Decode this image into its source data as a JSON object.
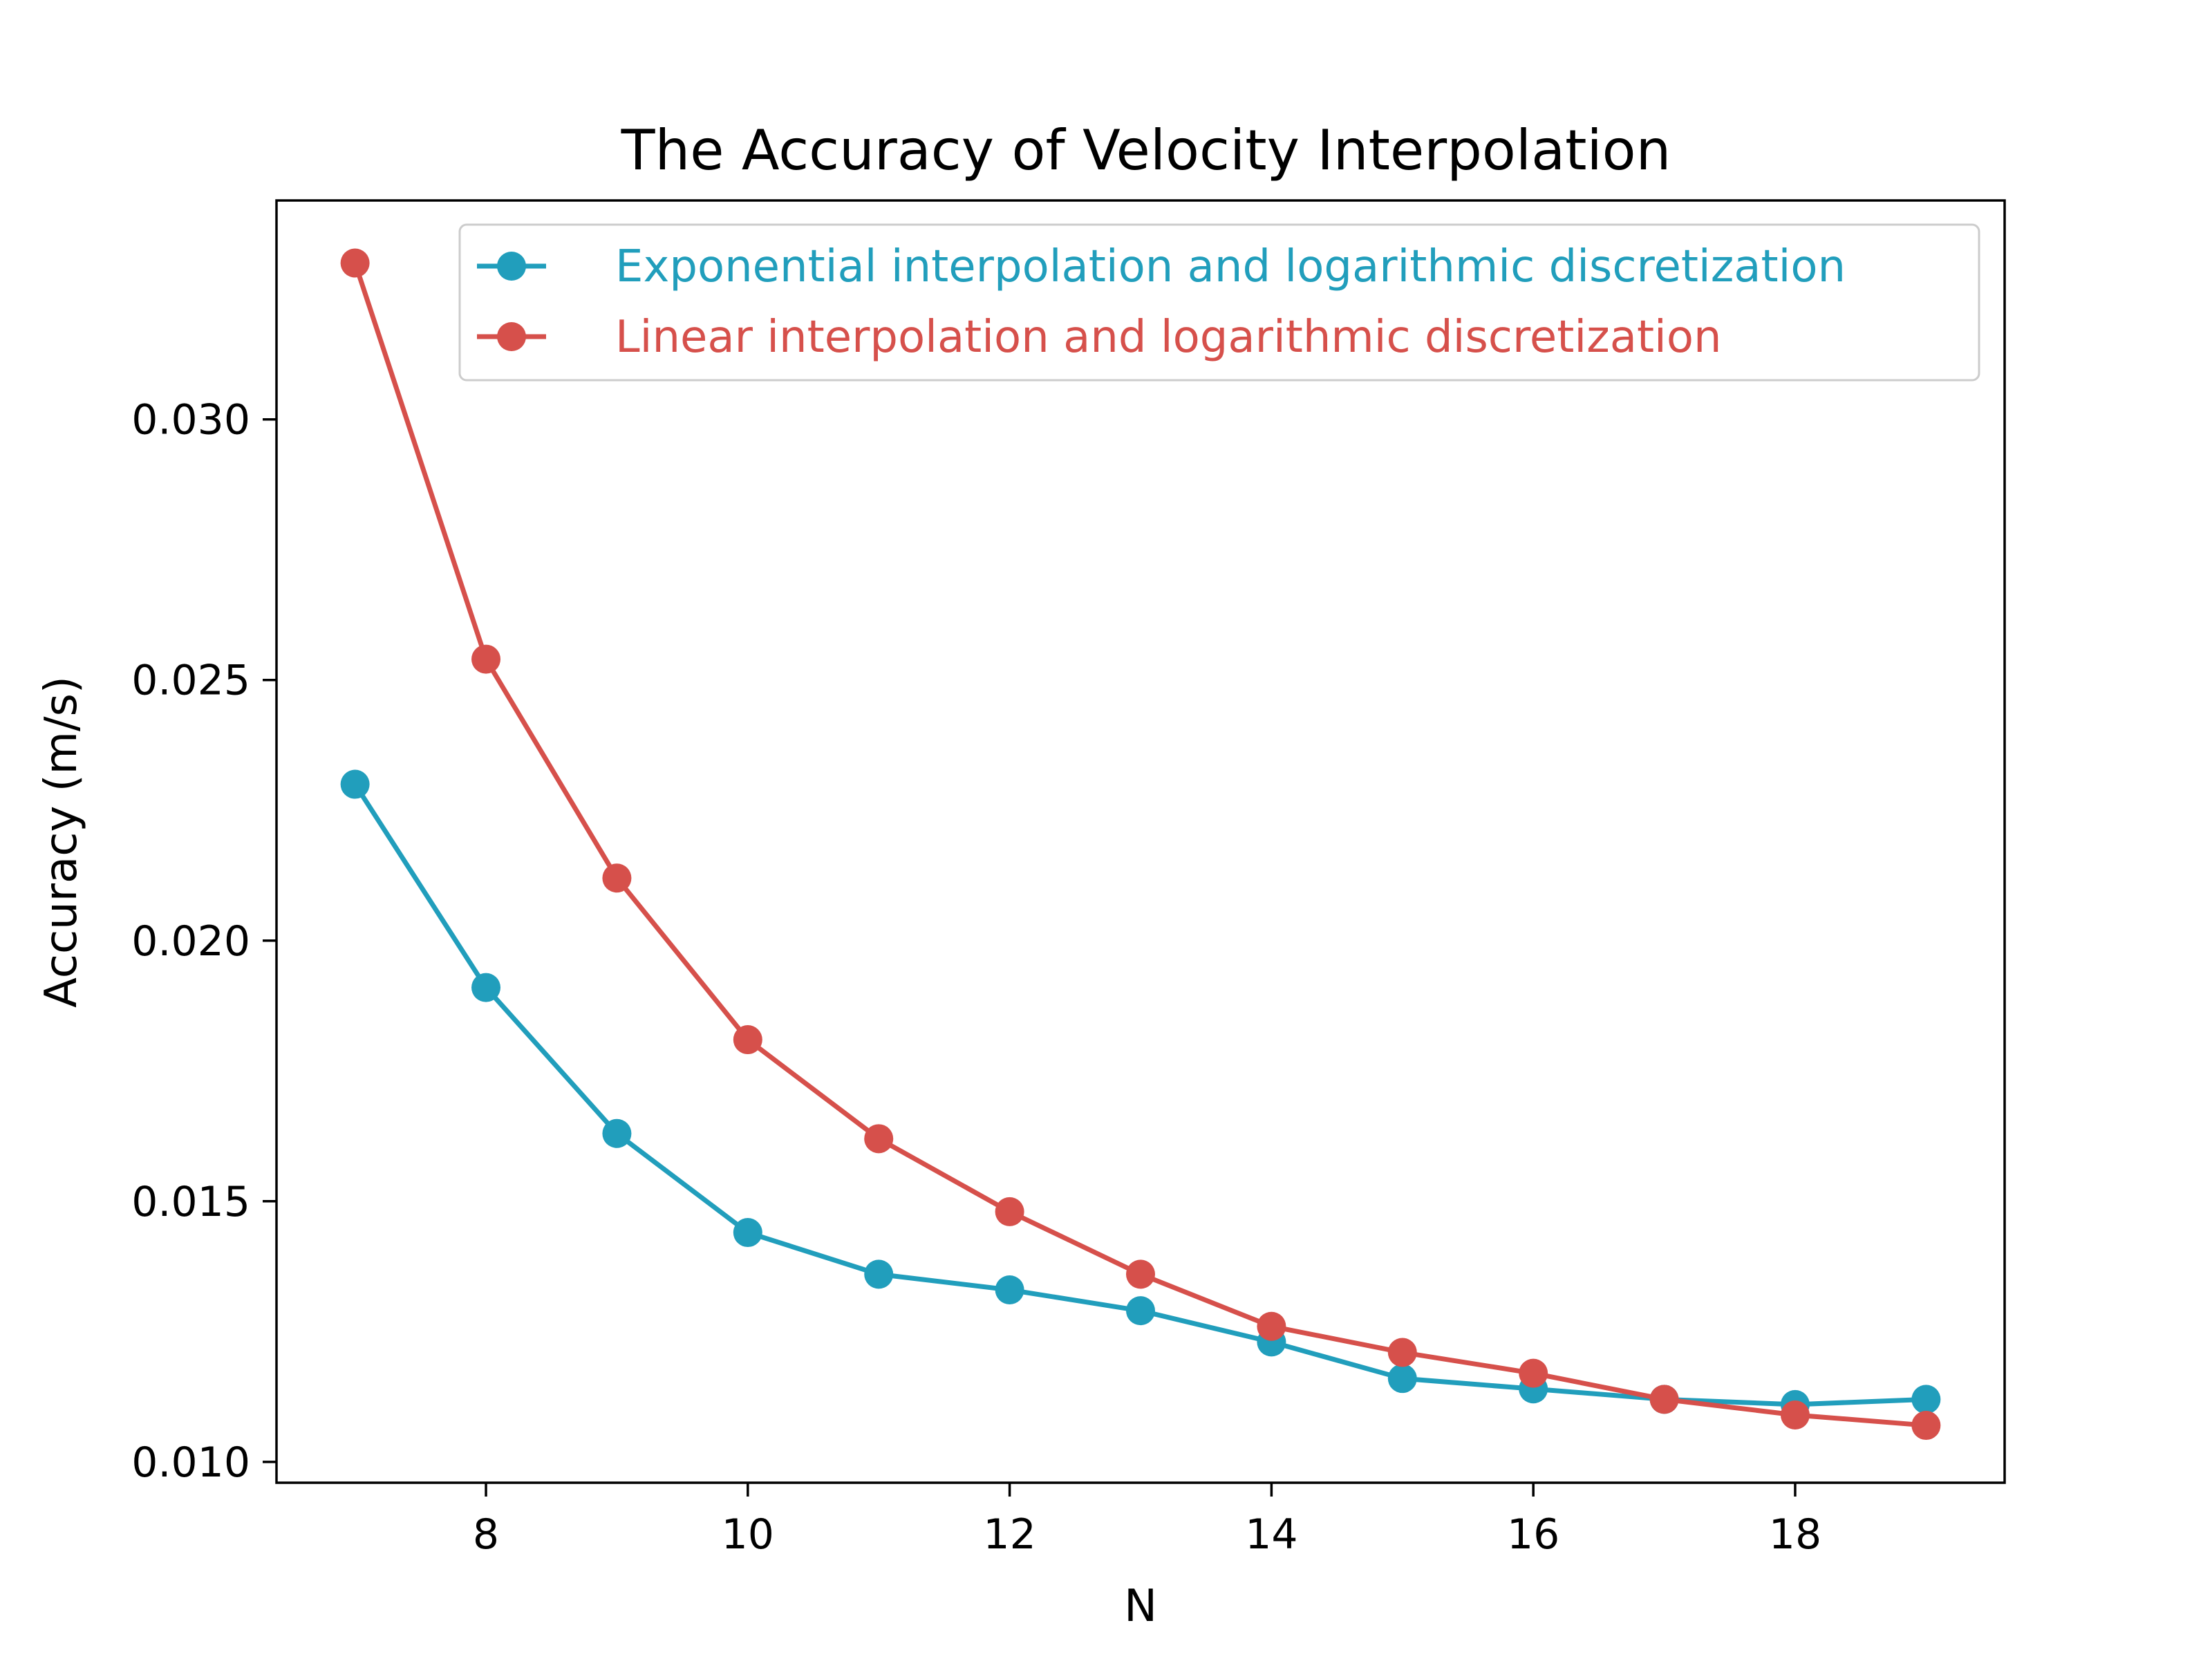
{
  "chart_data": {
    "type": "line",
    "title": "The Accuracy of Velocity Interpolation",
    "xlabel": "N",
    "ylabel": "Accuracy (m/s)",
    "x": [
      7,
      8,
      9,
      10,
      11,
      12,
      13,
      14,
      15,
      16,
      17,
      18,
      19
    ],
    "xlim": [
      6.4,
      19.6
    ],
    "ylim": [
      0.0096,
      0.0342
    ],
    "xticks": [
      8,
      10,
      12,
      14,
      16,
      18
    ],
    "xtick_labels": [
      "8",
      "10",
      "12",
      "14",
      "16",
      "18"
    ],
    "yticks": [
      0.01,
      0.015,
      0.02,
      0.025,
      0.03
    ],
    "ytick_labels": [
      "0.010",
      "0.015",
      "0.020",
      "0.025",
      "0.030"
    ],
    "grid": false,
    "legend_position": "top-right",
    "series": [
      {
        "name": "Exponential interpolation and logarithmic discretization",
        "color": "#219ebc",
        "marker": "circle",
        "values": [
          0.023,
          0.0191,
          0.0163,
          0.0144,
          0.0136,
          0.0133,
          0.0129,
          0.0123,
          0.0116,
          0.0114,
          0.0112,
          0.0111,
          0.0112
        ]
      },
      {
        "name": "Linear interpolation and logarithmic discretization",
        "color": "#d6504b",
        "marker": "circle",
        "values": [
          0.033,
          0.0254,
          0.0212,
          0.0181,
          0.0162,
          0.0148,
          0.0136,
          0.0126,
          0.0121,
          0.0117,
          0.0112,
          0.0109,
          0.0107
        ]
      }
    ]
  }
}
